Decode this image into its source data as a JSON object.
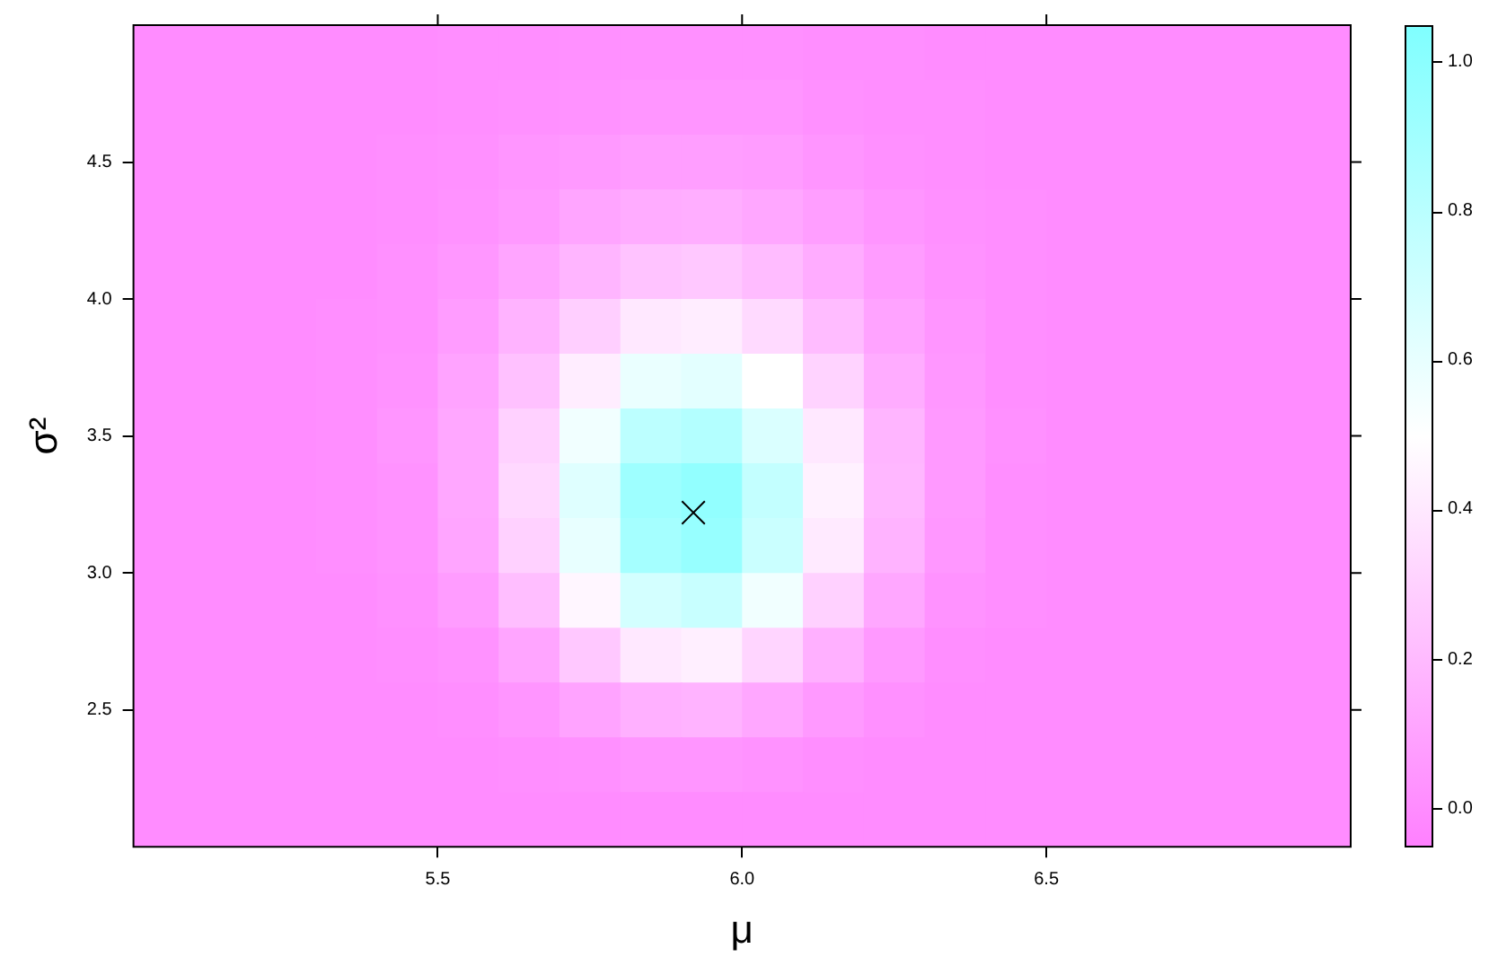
{
  "chart_data": {
    "type": "heatmap",
    "xlabel": "μ",
    "ylabel": "σ²",
    "xlim": [
      5.0,
      7.0
    ],
    "ylim": [
      2.0,
      5.0
    ],
    "xticks": [
      5.5,
      {
        "value": 6,
        "label": "6.0"
      },
      6.5
    ],
    "yticks": [
      2.5,
      {
        "value": 3,
        "label": "3.0"
      },
      3.5,
      {
        "value": 4,
        "label": "4.0"
      },
      4.5
    ],
    "clim": [
      -0.05,
      1.05
    ],
    "cticks": [
      {
        "value": 0,
        "label": "0.0"
      },
      0.2,
      0.4,
      0.6,
      0.8,
      {
        "value": 1,
        "label": "1.0"
      }
    ],
    "x": [
      5.05,
      5.15,
      5.25,
      5.35,
      5.45,
      5.55,
      5.65,
      5.75,
      5.85,
      5.95,
      6.05,
      6.15,
      6.25,
      6.35,
      6.45,
      6.55,
      6.65,
      6.75,
      6.85,
      6.95
    ],
    "y": [
      4.9,
      4.7,
      4.5,
      4.3,
      4.1,
      3.9,
      3.7,
      3.5,
      3.3,
      3.1,
      2.9,
      2.7,
      2.5,
      2.3,
      2.1
    ],
    "cells": [
      [
        0,
        0,
        0,
        0,
        0,
        0.01,
        0.01,
        0.02,
        0.02,
        0.02,
        0.02,
        0.01,
        0.01,
        0,
        0,
        0,
        0,
        0,
        0,
        0
      ],
      [
        0,
        0,
        0,
        0,
        0,
        0.01,
        0.02,
        0.03,
        0.04,
        0.04,
        0.04,
        0.02,
        0.01,
        0.01,
        0,
        0,
        0,
        0,
        0,
        0
      ],
      [
        0,
        0,
        0,
        0,
        0.01,
        0.02,
        0.04,
        0.06,
        0.08,
        0.08,
        0.07,
        0.04,
        0.02,
        0.01,
        0,
        0,
        0,
        0,
        0,
        0
      ],
      [
        0,
        0,
        0,
        0,
        0.01,
        0.03,
        0.06,
        0.11,
        0.14,
        0.15,
        0.12,
        0.08,
        0.04,
        0.02,
        0.01,
        0,
        0,
        0,
        0,
        0
      ],
      [
        0,
        0,
        0,
        0,
        0.02,
        0.05,
        0.11,
        0.18,
        0.24,
        0.26,
        0.21,
        0.14,
        0.07,
        0.03,
        0.01,
        0,
        0,
        0,
        0,
        0
      ],
      [
        0,
        0,
        0,
        0.01,
        0.02,
        0.07,
        0.17,
        0.29,
        0.4,
        0.42,
        0.34,
        0.21,
        0.1,
        0.04,
        0.01,
        0,
        0,
        0,
        0,
        0
      ],
      [
        0,
        0,
        0,
        0.01,
        0.03,
        0.1,
        0.23,
        0.42,
        0.59,
        0.62,
        0.5,
        0.31,
        0.14,
        0.05,
        0.01,
        0,
        0,
        0,
        0,
        0
      ],
      [
        0,
        0,
        0,
        0.01,
        0.04,
        0.12,
        0.3,
        0.56,
        0.79,
        0.83,
        0.66,
        0.4,
        0.18,
        0.06,
        0.02,
        0,
        0,
        0,
        0,
        0
      ],
      [
        0,
        0,
        0,
        0.01,
        0.03,
        0.12,
        0.33,
        0.64,
        0.92,
        0.97,
        0.76,
        0.44,
        0.19,
        0.06,
        0.01,
        0,
        0,
        0,
        0,
        0
      ],
      [
        0,
        0,
        0,
        0.01,
        0.03,
        0.11,
        0.3,
        0.6,
        0.89,
        0.95,
        0.73,
        0.41,
        0.17,
        0.05,
        0.01,
        0,
        0,
        0,
        0,
        0
      ],
      [
        0,
        0,
        0,
        0,
        0.02,
        0.07,
        0.22,
        0.46,
        0.69,
        0.74,
        0.56,
        0.3,
        0.12,
        0.03,
        0.01,
        0,
        0,
        0,
        0,
        0
      ],
      [
        0,
        0,
        0,
        0,
        0.01,
        0.03,
        0.11,
        0.26,
        0.4,
        0.43,
        0.32,
        0.16,
        0.06,
        0.01,
        0,
        0,
        0,
        0,
        0,
        0
      ],
      [
        0,
        0,
        0,
        0,
        0,
        0.01,
        0.04,
        0.1,
        0.16,
        0.17,
        0.12,
        0.06,
        0.02,
        0,
        0,
        0,
        0,
        0,
        0,
        0
      ],
      [
        0,
        0,
        0,
        0,
        0,
        0,
        0.01,
        0.02,
        0.04,
        0.04,
        0.03,
        0.01,
        0,
        0,
        0,
        0,
        0,
        0,
        0,
        0
      ],
      [
        0,
        0,
        0,
        0,
        0,
        0,
        0,
        0,
        0,
        0,
        0,
        0,
        0,
        0,
        0,
        0,
        0,
        0,
        0,
        0
      ]
    ],
    "series": [
      {
        "type": "scatter",
        "x": [
          5.92
        ],
        "values": [
          3.22
        ],
        "marker": "cross",
        "color": "#000000"
      }
    ]
  }
}
